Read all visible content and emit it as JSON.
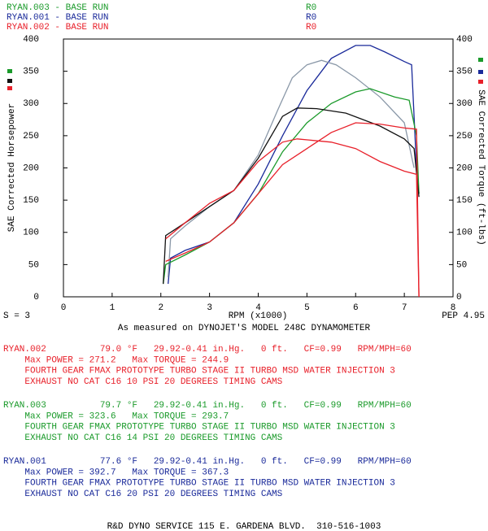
{
  "chart_data": {
    "type": "line",
    "runs": [
      {
        "name": "RYAN.003 - BASE RUN",
        "tag": "R0",
        "color": "#1a9a2a"
      },
      {
        "name": "RYAN.001 - BASE RUN",
        "tag": "R0",
        "color": "#1a2a9a"
      },
      {
        "name": "RYAN.002 - BASE RUN",
        "tag": "R0",
        "color": "#e8202a"
      }
    ],
    "ylabel": "SAE Corrected Horsepower",
    "y2label": "SAE Corrected Torque (ft-lbs)",
    "xlabel": "RPM (x1000)",
    "smoothing": "S = 3",
    "version": "PEP 4.95",
    "subtitle": "As measured on DYNOJET'S MODEL 248C DYNAMOMETER",
    "xlim": [
      0,
      8
    ],
    "xticks": [
      0,
      1,
      2,
      3,
      4,
      5,
      6,
      7,
      8
    ],
    "ylim": [
      0,
      400
    ],
    "yticks": [
      0,
      50,
      100,
      150,
      200,
      250,
      300,
      350,
      400
    ],
    "y2lim": [
      0,
      400
    ],
    "y2ticks": [
      0,
      50,
      100,
      150,
      200,
      250,
      300,
      350,
      400
    ],
    "series": [
      {
        "color": "#1a2a9a",
        "x": [
          2.15,
          2.2,
          2.5,
          3,
          3.5,
          4,
          4.5,
          5,
          5.5,
          6,
          6.3,
          6.6,
          7.0,
          7.15,
          7.25,
          7.3
        ],
        "values": [
          20,
          60,
          72,
          85,
          115,
          175,
          250,
          320,
          370,
          390,
          390,
          380,
          365,
          360,
          200,
          160
        ]
      },
      {
        "color": "#8a98a8",
        "axis": "y2",
        "x": [
          2.15,
          2.2,
          2.5,
          3,
          3.5,
          4,
          4.4,
          4.7,
          5.0,
          5.3,
          5.6,
          6,
          6.5,
          7.0,
          7.2
        ],
        "values": [
          30,
          90,
          110,
          140,
          165,
          220,
          290,
          340,
          360,
          367,
          360,
          340,
          310,
          270,
          200
        ]
      },
      {
        "color": "#1a9a2a",
        "x": [
          2.05,
          2.1,
          2.5,
          3,
          3.5,
          4,
          4.5,
          5,
          5.5,
          6,
          6.3,
          6.8,
          7.1,
          7.25,
          7.3
        ],
        "values": [
          20,
          50,
          65,
          85,
          115,
          160,
          225,
          270,
          300,
          318,
          323,
          310,
          305,
          250,
          160
        ]
      },
      {
        "color": "#111111",
        "axis": "y2",
        "x": [
          2.05,
          2.1,
          2.5,
          3,
          3.5,
          4,
          4.5,
          4.8,
          5.2,
          5.8,
          6.5,
          7.0,
          7.2,
          7.3
        ],
        "values": [
          20,
          95,
          115,
          140,
          165,
          215,
          280,
          293,
          292,
          285,
          265,
          245,
          230,
          155
        ]
      },
      {
        "color": "#e8202a",
        "x": [
          2.1,
          2.5,
          3,
          3.5,
          4,
          4.5,
          5,
          5.5,
          6,
          6.5,
          7.0,
          7.25,
          7.3
        ],
        "values": [
          55,
          68,
          85,
          115,
          160,
          205,
          230,
          255,
          270,
          268,
          262,
          260,
          0
        ]
      },
      {
        "color": "#e8202a",
        "axis": "y2",
        "x": [
          2.1,
          2.5,
          3,
          3.5,
          4,
          4.5,
          4.8,
          5.5,
          6,
          6.5,
          7.0,
          7.25,
          7.3
        ],
        "values": [
          90,
          115,
          145,
          165,
          210,
          240,
          245,
          240,
          230,
          210,
          195,
          190,
          0
        ]
      }
    ],
    "notes": [
      {
        "color": "#e8202a",
        "lines": [
          "RYAN.002          79.0 °F   29.92-0.41 in.Hg.   0 ft.   CF=0.99   RPM/MPH=60",
          "    Max POWER = 271.2   Max TORQUE = 244.9",
          "    FOURTH GEAR FMAX PROTOTYPE TURBO STAGE II TURBO MSD WATER INJECTION 3",
          "    EXHAUST NO CAT C16 10 PSI 20 DEGREES TIMING CAMS"
        ]
      },
      {
        "color": "#1a9a2a",
        "lines": [
          "RYAN.003          79.7 °F   29.92-0.41 in.Hg.   0 ft.   CF=0.99   RPM/MPH=60",
          "    Max POWER = 323.6   Max TORQUE = 293.7",
          "    FOURTH GEAR FMAX PROTOTYPE TURBO STAGE II TURBO MSD WATER INJECTION 3",
          "    EXHAUST NO CAT C16 14 PSI 20 DEGREES TIMING CAMS"
        ]
      },
      {
        "color": "#1a2a9a",
        "lines": [
          "RYAN.001          77.6 °F   29.92-0.41 in.Hg.   0 ft.   CF=0.99   RPM/MPH=60",
          "    Max POWER = 392.7   Max TORQUE = 367.3",
          "    FOURTH GEAR FMAX PROTOTYPE TURBO STAGE II TURBO MSD WATER INJECTION 3",
          "    EXHAUST NO CAT C16 20 PSI 20 DEGREES TIMING CAMS"
        ]
      }
    ],
    "footer": "R&D DYNO SERVICE 115 E. GARDENA BLVD.  310-516-1003"
  }
}
